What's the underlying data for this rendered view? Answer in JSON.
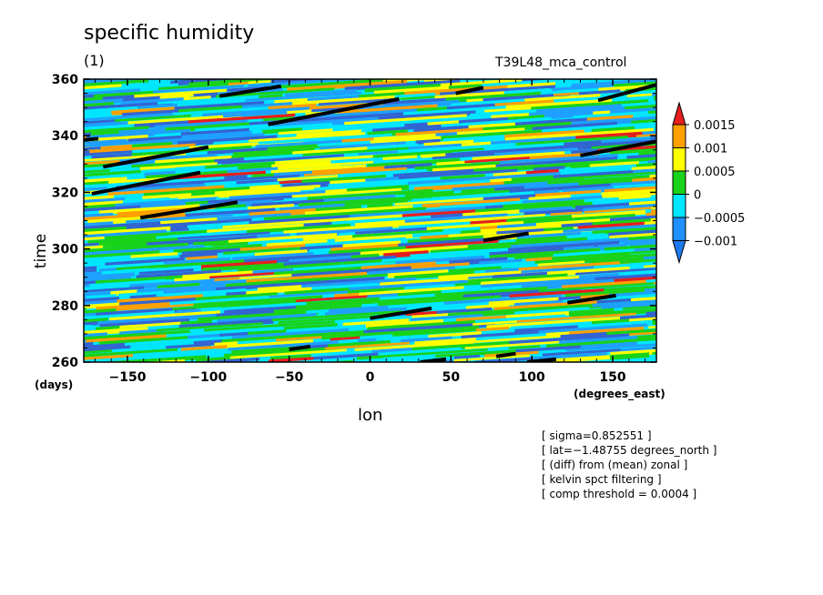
{
  "chart_data": {
    "type": "heatmap",
    "title": "specific humidity",
    "panel_label": "(1)",
    "run_label": "T39L48_mca_control",
    "xlabel": "lon",
    "ylabel": "time",
    "xunits": "(degrees_east)",
    "yunits": "(days)",
    "xlim": [
      -177,
      177
    ],
    "ylim": [
      260,
      360
    ],
    "xticks": [
      -150,
      -100,
      -50,
      0,
      50,
      100,
      150
    ],
    "yticks": [
      260,
      280,
      300,
      320,
      340,
      360
    ],
    "xtick_labels": [
      "−150",
      "−100",
      "−50",
      "0",
      "50",
      "100",
      "150"
    ],
    "ytick_labels": [
      "260",
      "280",
      "300",
      "320",
      "340",
      "360"
    ],
    "colorbar": {
      "levels": [
        -0.001,
        -0.0005,
        0,
        0.0005,
        0.001,
        0.0015
      ],
      "labels": [
        "−0.001",
        "−0.0005",
        "0",
        "0.0005",
        "0.001",
        "0.0015"
      ],
      "colors": [
        "#1e78f0",
        "#1e90ff",
        "#00e6ff",
        "#19d219",
        "#ffff00",
        "#ffa000",
        "#e61e1e"
      ]
    },
    "field_colors": {
      "strong_negative": "#3264d2",
      "negative": "#1ea0ff",
      "near_zero_negative": "#00e6ff",
      "near_zero_positive": "#19d219",
      "positive": "#ffff00",
      "strong_positive": "#ffa000",
      "max_positive": "#e61e1e"
    },
    "threshold_segments": [
      {
        "x": [
          -177,
          -168
        ],
        "y": [
          338.5,
          339
        ]
      },
      {
        "x": [
          -165,
          -100
        ],
        "y": [
          329,
          336
        ]
      },
      {
        "x": [
          -172,
          -105
        ],
        "y": [
          319.5,
          327
        ]
      },
      {
        "x": [
          -142,
          -82
        ],
        "y": [
          311,
          316.5
        ]
      },
      {
        "x": [
          -93,
          -55
        ],
        "y": [
          354,
          357.5
        ]
      },
      {
        "x": [
          -63,
          18
        ],
        "y": [
          344,
          353
        ]
      },
      {
        "x": [
          53,
          70
        ],
        "y": [
          355,
          357
        ]
      },
      {
        "x": [
          141,
          177
        ],
        "y": [
          352.5,
          358
        ]
      },
      {
        "x": [
          130,
          177
        ],
        "y": [
          333,
          338
        ]
      },
      {
        "x": [
          70,
          98
        ],
        "y": [
          303,
          305.5
        ]
      },
      {
        "x": [
          0,
          38
        ],
        "y": [
          275.5,
          279
        ]
      },
      {
        "x": [
          122,
          152
        ],
        "y": [
          281,
          283.5
        ]
      },
      {
        "x": [
          -50,
          -37
        ],
        "y": [
          264.5,
          265.5
        ]
      },
      {
        "x": [
          78,
          90
        ],
        "y": [
          262,
          263
        ]
      },
      {
        "x": [
          31,
          47
        ],
        "y": [
          260,
          261
        ]
      },
      {
        "x": [
          97,
          115
        ],
        "y": [
          260,
          261
        ]
      }
    ]
  },
  "annotations": [
    "[ sigma=0.852551 ]",
    "[ lat=−1.48755 degrees_north ]",
    "[ (diff) from (mean) zonal ]",
    "[ kelvin spct filtering ]",
    "[ comp threshold = 0.0004 ]"
  ]
}
